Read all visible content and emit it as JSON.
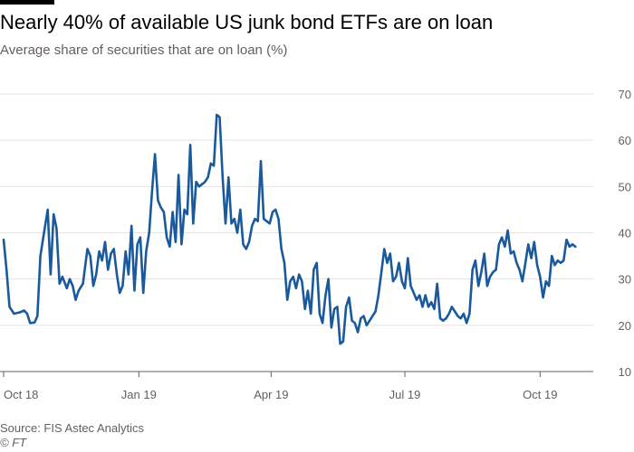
{
  "header": {
    "title": "Nearly 40% of available US junk bond ETFs are on loan",
    "subtitle": "Average share of securities that are on loan (%)"
  },
  "footer": {
    "source": "Source: FIS Astec Analytics",
    "credit": "© FT"
  },
  "colors": {
    "line": "#1a5a9c",
    "grid": "#e6e3df",
    "axis": "#66605c",
    "bar": "#000000"
  },
  "chart_data": {
    "type": "line",
    "title": "Nearly 40% of available US junk bond ETFs are on loan",
    "subtitle": "Average share of securities that are on loan (%)",
    "xlabel": "",
    "ylabel": "",
    "ylim": [
      10,
      70
    ],
    "y_ticks": [
      10,
      20,
      30,
      40,
      50,
      60,
      70
    ],
    "y_axis_side": "right",
    "x_range": [
      "2018-10-01",
      "2019-10-31"
    ],
    "x_ticks": [
      {
        "date": "2018-10-01",
        "label": "Oct 18"
      },
      {
        "date": "2019-01-01",
        "label": "Jan 19"
      },
      {
        "date": "2019-04-01",
        "label": "Apr 19"
      },
      {
        "date": "2019-07-01",
        "label": "Jul 19"
      },
      {
        "date": "2019-10-01",
        "label": "Oct 19"
      }
    ],
    "grid": true,
    "series": [
      {
        "values": [
          [
            "2018-10-01",
            38.5
          ],
          [
            "2018-10-03",
            32
          ],
          [
            "2018-10-05",
            24
          ],
          [
            "2018-10-08",
            22.5
          ],
          [
            "2018-10-12",
            22.8
          ],
          [
            "2018-10-15",
            23.2
          ],
          [
            "2018-10-17",
            22.5
          ],
          [
            "2018-10-19",
            20.5
          ],
          [
            "2018-10-22",
            20.6
          ],
          [
            "2018-10-24",
            22
          ],
          [
            "2018-10-26",
            35
          ],
          [
            "2018-10-29",
            41
          ],
          [
            "2018-10-31",
            45
          ],
          [
            "2018-11-02",
            31
          ],
          [
            "2018-11-04",
            44
          ],
          [
            "2018-11-06",
            41
          ],
          [
            "2018-11-08",
            29
          ],
          [
            "2018-11-10",
            30.5
          ],
          [
            "2018-11-13",
            28
          ],
          [
            "2018-11-15",
            30
          ],
          [
            "2018-11-17",
            28.5
          ],
          [
            "2018-11-19",
            25.5
          ],
          [
            "2018-11-21",
            27.5
          ],
          [
            "2018-11-24",
            29
          ],
          [
            "2018-11-27",
            36.5
          ],
          [
            "2018-11-29",
            35
          ],
          [
            "2018-12-01",
            28.5
          ],
          [
            "2018-12-03",
            31
          ],
          [
            "2018-12-05",
            36
          ],
          [
            "2018-12-07",
            34
          ],
          [
            "2018-12-09",
            38
          ],
          [
            "2018-12-11",
            32
          ],
          [
            "2018-12-13",
            35.5
          ],
          [
            "2018-12-15",
            36.5
          ],
          [
            "2018-12-17",
            31
          ],
          [
            "2018-12-19",
            27
          ],
          [
            "2018-12-21",
            28.5
          ],
          [
            "2018-12-23",
            36
          ],
          [
            "2018-12-25",
            31
          ],
          [
            "2018-12-27",
            41.5
          ],
          [
            "2018-12-29",
            27.5
          ],
          [
            "2018-12-31",
            37.5
          ],
          [
            "2019-01-02",
            39
          ],
          [
            "2019-01-04",
            27
          ],
          [
            "2019-01-06",
            36
          ],
          [
            "2019-01-08",
            40
          ],
          [
            "2019-01-10",
            49
          ],
          [
            "2019-01-12",
            57
          ],
          [
            "2019-01-14",
            47
          ],
          [
            "2019-01-16",
            45.5
          ],
          [
            "2019-01-18",
            44.5
          ],
          [
            "2019-01-20",
            39
          ],
          [
            "2019-01-22",
            37
          ],
          [
            "2019-01-24",
            44.5
          ],
          [
            "2019-01-26",
            38
          ],
          [
            "2019-01-28",
            52.5
          ],
          [
            "2019-01-30",
            37.5
          ],
          [
            "2019-02-01",
            45
          ],
          [
            "2019-02-03",
            44
          ],
          [
            "2019-02-05",
            59
          ],
          [
            "2019-02-07",
            42
          ],
          [
            "2019-02-09",
            51
          ],
          [
            "2019-02-11",
            50
          ],
          [
            "2019-02-13",
            50.5
          ],
          [
            "2019-02-15",
            51
          ],
          [
            "2019-02-17",
            52
          ],
          [
            "2019-02-19",
            55
          ],
          [
            "2019-02-21",
            54.5
          ],
          [
            "2019-02-23",
            65.5
          ],
          [
            "2019-02-25",
            65
          ],
          [
            "2019-02-27",
            52
          ],
          [
            "2019-03-01",
            42
          ],
          [
            "2019-03-03",
            52
          ],
          [
            "2019-03-05",
            42
          ],
          [
            "2019-03-07",
            43
          ],
          [
            "2019-03-09",
            40
          ],
          [
            "2019-03-11",
            45
          ],
          [
            "2019-03-13",
            37.5
          ],
          [
            "2019-03-15",
            36.5
          ],
          [
            "2019-03-17",
            38
          ],
          [
            "2019-03-19",
            41.5
          ],
          [
            "2019-03-21",
            43
          ],
          [
            "2019-03-23",
            42.5
          ],
          [
            "2019-03-25",
            55.5
          ],
          [
            "2019-03-27",
            43
          ],
          [
            "2019-03-29",
            42.5
          ],
          [
            "2019-03-31",
            42
          ],
          [
            "2019-04-02",
            44.5
          ],
          [
            "2019-04-04",
            45
          ],
          [
            "2019-04-06",
            43
          ],
          [
            "2019-04-08",
            36.5
          ],
          [
            "2019-04-10",
            33.5
          ],
          [
            "2019-04-12",
            25.5
          ],
          [
            "2019-04-14",
            29.5
          ],
          [
            "2019-04-16",
            30.5
          ],
          [
            "2019-04-18",
            28
          ],
          [
            "2019-04-20",
            31
          ],
          [
            "2019-04-22",
            29.5
          ],
          [
            "2019-04-24",
            23.5
          ],
          [
            "2019-04-26",
            27.5
          ],
          [
            "2019-04-28",
            22.5
          ],
          [
            "2019-04-30",
            32
          ],
          [
            "2019-05-02",
            33.5
          ],
          [
            "2019-05-04",
            22.5
          ],
          [
            "2019-05-06",
            20.5
          ],
          [
            "2019-05-08",
            26.5
          ],
          [
            "2019-05-10",
            30
          ],
          [
            "2019-05-12",
            19.5
          ],
          [
            "2019-05-14",
            23.5
          ],
          [
            "2019-05-16",
            24
          ],
          [
            "2019-05-18",
            16
          ],
          [
            "2019-05-20",
            16.5
          ],
          [
            "2019-05-22",
            24
          ],
          [
            "2019-05-24",
            26
          ],
          [
            "2019-05-26",
            21
          ],
          [
            "2019-05-28",
            20.5
          ],
          [
            "2019-05-30",
            18.5
          ],
          [
            "2019-06-01",
            21.5
          ],
          [
            "2019-06-03",
            22
          ],
          [
            "2019-06-05",
            20
          ],
          [
            "2019-06-07",
            21
          ],
          [
            "2019-06-09",
            22
          ],
          [
            "2019-06-11",
            23
          ],
          [
            "2019-06-13",
            26.5
          ],
          [
            "2019-06-15",
            31.5
          ],
          [
            "2019-06-17",
            36.5
          ],
          [
            "2019-06-19",
            33.5
          ],
          [
            "2019-06-21",
            35.5
          ],
          [
            "2019-06-23",
            29.5
          ],
          [
            "2019-06-25",
            30.5
          ],
          [
            "2019-06-27",
            33.5
          ],
          [
            "2019-06-29",
            29.5
          ],
          [
            "2019-07-01",
            28
          ],
          [
            "2019-07-03",
            34.5
          ],
          [
            "2019-07-05",
            28.5
          ],
          [
            "2019-07-07",
            27
          ],
          [
            "2019-07-09",
            25.5
          ],
          [
            "2019-07-11",
            26.5
          ],
          [
            "2019-07-13",
            24
          ],
          [
            "2019-07-15",
            26.5
          ],
          [
            "2019-07-17",
            24
          ],
          [
            "2019-07-19",
            25
          ],
          [
            "2019-07-21",
            23.5
          ],
          [
            "2019-07-23",
            29
          ],
          [
            "2019-07-25",
            21.5
          ],
          [
            "2019-07-27",
            21
          ],
          [
            "2019-07-29",
            21.5
          ],
          [
            "2019-07-31",
            22.5
          ],
          [
            "2019-08-02",
            24
          ],
          [
            "2019-08-04",
            23
          ],
          [
            "2019-08-06",
            22
          ],
          [
            "2019-08-08",
            21.5
          ],
          [
            "2019-08-10",
            22.5
          ],
          [
            "2019-08-12",
            20.5
          ],
          [
            "2019-08-14",
            22.5
          ],
          [
            "2019-08-16",
            32
          ],
          [
            "2019-08-18",
            34
          ],
          [
            "2019-08-20",
            28.5
          ],
          [
            "2019-08-22",
            31.5
          ],
          [
            "2019-08-24",
            35.5
          ],
          [
            "2019-08-26",
            28.5
          ],
          [
            "2019-08-28",
            30.5
          ],
          [
            "2019-08-30",
            31.5
          ],
          [
            "2019-09-01",
            32
          ],
          [
            "2019-09-03",
            37.5
          ],
          [
            "2019-09-05",
            39
          ],
          [
            "2019-09-07",
            37
          ],
          [
            "2019-09-09",
            40.5
          ],
          [
            "2019-09-11",
            35.5
          ],
          [
            "2019-09-13",
            36
          ],
          [
            "2019-09-15",
            33.5
          ],
          [
            "2019-09-17",
            32
          ],
          [
            "2019-09-19",
            29.5
          ],
          [
            "2019-09-21",
            33.5
          ],
          [
            "2019-09-23",
            37.5
          ],
          [
            "2019-09-25",
            34.5
          ],
          [
            "2019-09-27",
            38
          ],
          [
            "2019-09-29",
            33
          ],
          [
            "2019-10-01",
            30.5
          ],
          [
            "2019-10-03",
            26
          ],
          [
            "2019-10-05",
            29.5
          ],
          [
            "2019-10-07",
            28.5
          ],
          [
            "2019-10-09",
            35
          ],
          [
            "2019-10-11",
            33
          ],
          [
            "2019-10-13",
            34
          ],
          [
            "2019-10-15",
            33.5
          ],
          [
            "2019-10-17",
            34
          ],
          [
            "2019-10-19",
            38.5
          ],
          [
            "2019-10-21",
            37
          ],
          [
            "2019-10-23",
            37.5
          ],
          [
            "2019-10-25",
            37
          ]
        ]
      }
    ]
  }
}
